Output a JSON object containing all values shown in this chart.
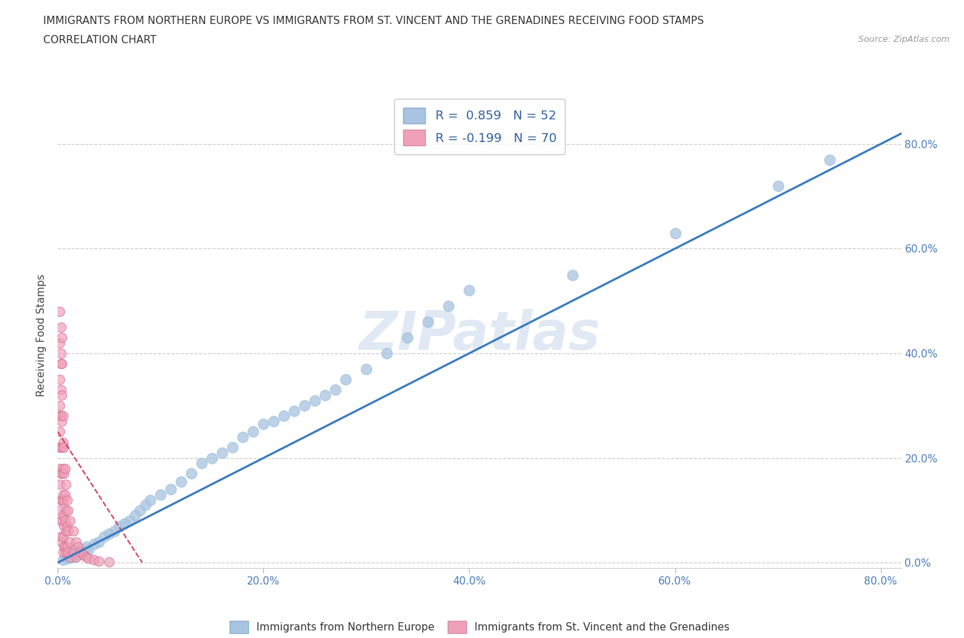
{
  "title_line1": "IMMIGRANTS FROM NORTHERN EUROPE VS IMMIGRANTS FROM ST. VINCENT AND THE GRENADINES RECEIVING FOOD STAMPS",
  "title_line2": "CORRELATION CHART",
  "source": "Source: ZipAtlas.com",
  "ylabel": "Receiving Food Stamps",
  "xmin": 0.0,
  "xmax": 0.82,
  "ymin": -0.01,
  "ymax": 0.88,
  "r_blue": 0.859,
  "n_blue": 52,
  "r_pink": -0.199,
  "n_pink": 70,
  "color_blue": "#a8c4e0",
  "color_pink": "#f0a0b8",
  "color_line_blue": "#3a7abf",
  "color_line_pink": "#d04060",
  "ytick_labels": [
    "0.0%",
    "20.0%",
    "40.0%",
    "60.0%",
    "80.0%"
  ],
  "ytick_values": [
    0.0,
    0.2,
    0.4,
    0.6,
    0.8
  ],
  "xtick_labels": [
    "0.0%",
    "20.0%",
    "40.0%",
    "60.0%",
    "80.0%"
  ],
  "xtick_values": [
    0.0,
    0.2,
    0.4,
    0.6,
    0.8
  ],
  "blue_x": [
    0.005,
    0.008,
    0.01,
    0.012,
    0.015,
    0.018,
    0.02,
    0.022,
    0.025,
    0.028,
    0.03,
    0.035,
    0.04,
    0.045,
    0.05,
    0.055,
    0.06,
    0.065,
    0.07,
    0.075,
    0.08,
    0.085,
    0.09,
    0.1,
    0.11,
    0.12,
    0.13,
    0.14,
    0.15,
    0.16,
    0.17,
    0.18,
    0.19,
    0.2,
    0.21,
    0.22,
    0.23,
    0.24,
    0.25,
    0.26,
    0.27,
    0.28,
    0.3,
    0.32,
    0.34,
    0.36,
    0.38,
    0.4,
    0.5,
    0.6,
    0.7,
    0.75
  ],
  "blue_y": [
    0.005,
    0.01,
    0.008,
    0.015,
    0.01,
    0.02,
    0.015,
    0.025,
    0.02,
    0.03,
    0.025,
    0.035,
    0.04,
    0.05,
    0.055,
    0.06,
    0.07,
    0.075,
    0.08,
    0.09,
    0.1,
    0.11,
    0.12,
    0.13,
    0.14,
    0.155,
    0.17,
    0.19,
    0.2,
    0.21,
    0.22,
    0.24,
    0.25,
    0.265,
    0.27,
    0.28,
    0.29,
    0.3,
    0.31,
    0.32,
    0.33,
    0.35,
    0.37,
    0.4,
    0.43,
    0.46,
    0.49,
    0.52,
    0.55,
    0.63,
    0.72,
    0.77
  ],
  "pink_x": [
    0.002,
    0.002,
    0.002,
    0.002,
    0.002,
    0.002,
    0.002,
    0.002,
    0.003,
    0.003,
    0.003,
    0.003,
    0.003,
    0.003,
    0.003,
    0.003,
    0.004,
    0.004,
    0.004,
    0.004,
    0.004,
    0.004,
    0.004,
    0.005,
    0.005,
    0.005,
    0.005,
    0.005,
    0.005,
    0.005,
    0.006,
    0.006,
    0.006,
    0.006,
    0.006,
    0.007,
    0.007,
    0.007,
    0.007,
    0.008,
    0.008,
    0.008,
    0.008,
    0.009,
    0.009,
    0.009,
    0.01,
    0.01,
    0.01,
    0.012,
    0.012,
    0.012,
    0.015,
    0.015,
    0.018,
    0.018,
    0.02,
    0.022,
    0.025,
    0.028,
    0.03,
    0.035,
    0.04,
    0.05,
    0.002,
    0.002,
    0.003,
    0.003,
    0.004,
    0.004
  ],
  "pink_y": [
    0.35,
    0.3,
    0.28,
    0.25,
    0.22,
    0.18,
    0.15,
    0.1,
    0.38,
    0.33,
    0.28,
    0.22,
    0.17,
    0.12,
    0.08,
    0.05,
    0.32,
    0.27,
    0.22,
    0.17,
    0.12,
    0.08,
    0.04,
    0.28,
    0.23,
    0.18,
    0.13,
    0.09,
    0.05,
    0.02,
    0.22,
    0.17,
    0.12,
    0.07,
    0.03,
    0.18,
    0.13,
    0.08,
    0.03,
    0.15,
    0.1,
    0.06,
    0.02,
    0.12,
    0.07,
    0.03,
    0.1,
    0.06,
    0.02,
    0.08,
    0.04,
    0.01,
    0.06,
    0.02,
    0.04,
    0.01,
    0.03,
    0.02,
    0.015,
    0.01,
    0.008,
    0.005,
    0.003,
    0.002,
    0.42,
    0.48,
    0.4,
    0.45,
    0.38,
    0.43
  ],
  "blue_line_x": [
    0.0,
    0.82
  ],
  "blue_line_y": [
    0.0,
    0.82
  ],
  "pink_line_x": [
    0.0,
    0.082
  ],
  "pink_line_y": [
    0.25,
    0.0
  ]
}
